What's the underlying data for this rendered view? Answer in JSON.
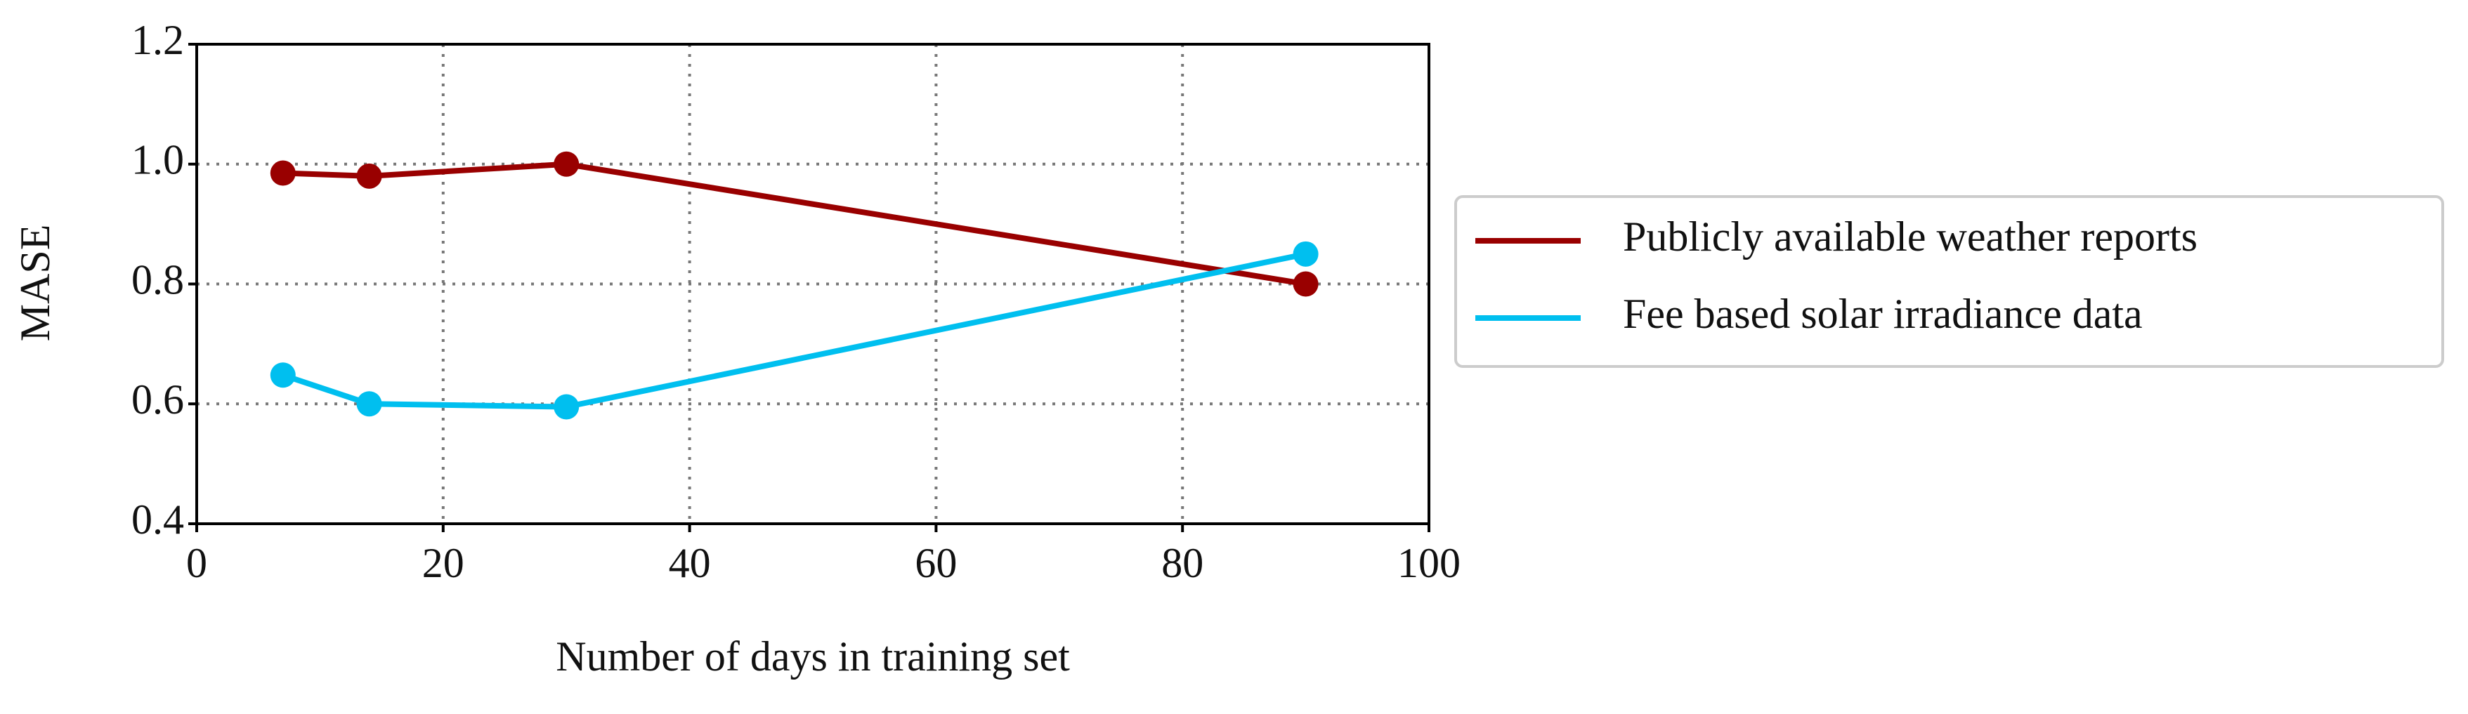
{
  "chart_data": {
    "type": "line",
    "x_label": "Number of days in training set",
    "y_label": "MASE",
    "series": [
      {
        "name": "Publicly available weather reports",
        "color": "#990000",
        "x": [
          7,
          14,
          30,
          90
        ],
        "values": [
          0.985,
          0.98,
          1.0,
          0.8
        ]
      },
      {
        "name": "Fee based solar irradiance data",
        "color": "#00bfef",
        "x": [
          7,
          14,
          30,
          90
        ],
        "values": [
          0.648,
          0.6,
          0.595,
          0.85
        ]
      }
    ],
    "xlim": [
      0,
      100
    ],
    "xticks": [
      0,
      20,
      40,
      60,
      80,
      100
    ],
    "ylim": [
      0.4,
      1.2
    ],
    "yticks": [
      0.4,
      0.6,
      0.8,
      {
        "value": 1.0,
        "label": "1.0"
      },
      1.2
    ],
    "grid": true,
    "legend": "outside right"
  }
}
